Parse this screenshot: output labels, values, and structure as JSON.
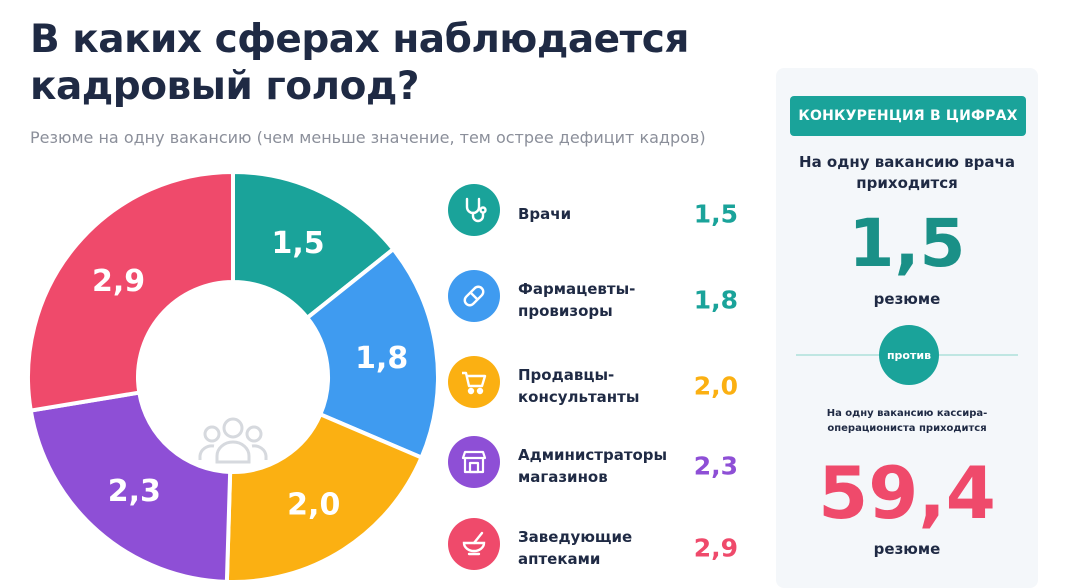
{
  "title": "В каких сферах наблюдается кадровый голод?",
  "subtitle": "Резюме на одну вакансию (чем меньше значение, тем острее дефицит кадров)",
  "chart_data": {
    "type": "pie",
    "title": "В каких сферах наблюдается кадровый голод?",
    "subtitle": "Резюме на одну вакансию (чем меньше значение, тем острее дефицит кадров)",
    "categories": [
      "Врачи",
      "Фармацевты-провизоры",
      "Продавцы-консультанты",
      "Администраторы магазинов",
      "Заведующие аптеками"
    ],
    "values": [
      1.5,
      1.8,
      2.0,
      2.3,
      2.9
    ],
    "value_labels": [
      "1,5",
      "1,8",
      "2,0",
      "2,3",
      "2,9"
    ],
    "colors": [
      "#1aa39a",
      "#3f9bf0",
      "#fbb012",
      "#8e4fd6",
      "#ef4a6b"
    ],
    "legend_position": "right"
  },
  "legend": [
    {
      "label": "Врачи",
      "value": "1,5",
      "color": "#1aa39a",
      "icon": "stethoscope-icon"
    },
    {
      "label": "Фармацевты-провизоры",
      "value": "1,8",
      "color": "#3f9bf0",
      "icon": "pill-icon"
    },
    {
      "label": "Продавцы-консультанты",
      "value": "2,0",
      "color": "#fbb012",
      "icon": "cart-icon"
    },
    {
      "label": "Администраторы магазинов",
      "value": "2,3",
      "color": "#8e4fd6",
      "icon": "store-icon"
    },
    {
      "label": "Заведующие аптеками",
      "value": "2,9",
      "color": "#ef4a6b",
      "icon": "mortar-pestle-icon"
    }
  ],
  "center_icon": "people-icon",
  "panel": {
    "badge": "КОНКУРЕНЦИЯ В ЦИФРАХ",
    "text1": "На одну вакансию врача приходится",
    "big1": "1,5",
    "unit1": "резюме",
    "versus": "против",
    "text2": "На одну вакансию кассира-операциониста приходится",
    "big2": "59,4",
    "unit2": "резюме",
    "accent": "#1aa39a",
    "highlight": "#ef4a6b"
  }
}
